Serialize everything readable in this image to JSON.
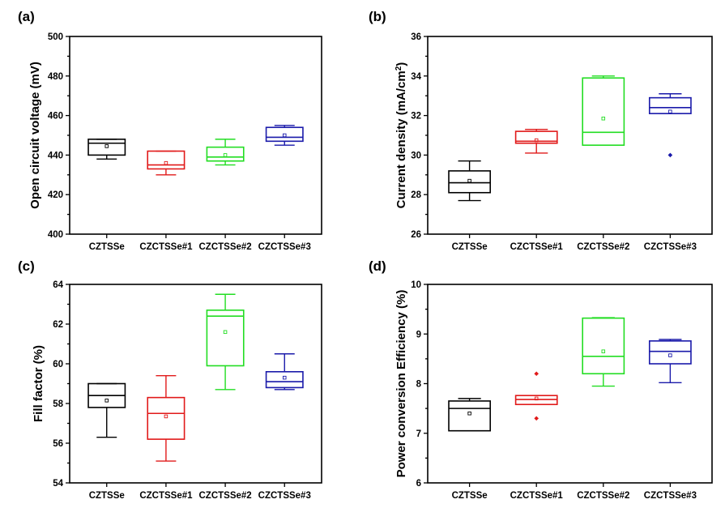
{
  "chart_data": [
    {
      "type": "box",
      "panel": "(a)",
      "ylabel": "Open circuit voltage (mV)",
      "ylim": [
        400,
        500
      ],
      "yticks": [
        400,
        420,
        440,
        460,
        480,
        500
      ],
      "categories": [
        "CZTSSe",
        "CZCTSSe#1",
        "CZCTSSe#2",
        "CZCTSSe#3"
      ],
      "colors": [
        "#000000",
        "#e11a1a",
        "#22dd22",
        "#1a1aaa"
      ],
      "boxes": [
        {
          "whisker_low": 438,
          "q1": 440,
          "median": 446,
          "q3": 448,
          "whisker_high": 448,
          "mean": 444.5,
          "outliers": []
        },
        {
          "whisker_low": 430,
          "q1": 433,
          "median": 435,
          "q3": 442,
          "whisker_high": 442,
          "mean": 436,
          "outliers": []
        },
        {
          "whisker_low": 435,
          "q1": 437,
          "median": 439,
          "q3": 444,
          "whisker_high": 448,
          "mean": 440,
          "outliers": []
        },
        {
          "whisker_low": 445,
          "q1": 447,
          "median": 449,
          "q3": 454,
          "whisker_high": 455,
          "mean": 450,
          "outliers": []
        }
      ]
    },
    {
      "type": "box",
      "panel": "(b)",
      "ylabel": "Current density (mA/cm",
      "ylabel_sup": "2",
      "ylabel_end": ")",
      "ylim": [
        26,
        36
      ],
      "yticks": [
        26,
        28,
        30,
        32,
        34,
        36
      ],
      "categories": [
        "CZTSSe",
        "CZCTSSe#1",
        "CZCTSSe#2",
        "CZCTSSe#3"
      ],
      "colors": [
        "#000000",
        "#e11a1a",
        "#22dd22",
        "#1a1aaa"
      ],
      "boxes": [
        {
          "whisker_low": 27.7,
          "q1": 28.1,
          "median": 28.6,
          "q3": 29.2,
          "whisker_high": 29.7,
          "mean": 28.7,
          "outliers": []
        },
        {
          "whisker_low": 30.1,
          "q1": 30.6,
          "median": 30.7,
          "q3": 31.2,
          "whisker_high": 31.3,
          "mean": 30.75,
          "outliers": []
        },
        {
          "whisker_low": 30.5,
          "q1": 30.5,
          "median": 31.15,
          "q3": 33.9,
          "whisker_high": 34.0,
          "mean": 31.85,
          "outliers": []
        },
        {
          "whisker_low": 32.1,
          "q1": 32.1,
          "median": 32.4,
          "q3": 32.9,
          "whisker_high": 33.1,
          "mean": 32.2,
          "outliers": [
            30.0
          ]
        }
      ]
    },
    {
      "type": "box",
      "panel": "(c)",
      "ylabel": "Fill factor (%)",
      "ylim": [
        54,
        64
      ],
      "yticks": [
        54,
        56,
        58,
        60,
        62,
        64
      ],
      "categories": [
        "CZTSSe",
        "CZCTSSe#1",
        "CZCTSSe#2",
        "CZCTSSe#3"
      ],
      "colors": [
        "#000000",
        "#e11a1a",
        "#22dd22",
        "#1a1aaa"
      ],
      "boxes": [
        {
          "whisker_low": 56.3,
          "q1": 57.8,
          "median": 58.4,
          "q3": 59.0,
          "whisker_high": 59.0,
          "mean": 58.15,
          "outliers": []
        },
        {
          "whisker_low": 55.1,
          "q1": 56.2,
          "median": 57.5,
          "q3": 58.3,
          "whisker_high": 59.4,
          "mean": 57.35,
          "outliers": []
        },
        {
          "whisker_low": 58.7,
          "q1": 59.9,
          "median": 62.4,
          "q3": 62.7,
          "whisker_high": 63.5,
          "mean": 61.6,
          "outliers": []
        },
        {
          "whisker_low": 58.7,
          "q1": 58.8,
          "median": 59.1,
          "q3": 59.6,
          "whisker_high": 60.5,
          "mean": 59.3,
          "outliers": []
        }
      ]
    },
    {
      "type": "box",
      "panel": "(d)",
      "ylabel": "Power conversion Efficiency (%)",
      "ylim": [
        6,
        10
      ],
      "yticks": [
        6,
        7,
        8,
        9,
        10
      ],
      "categories": [
        "CZTSSe",
        "CZCTSSe#1",
        "CZCTSSe#2",
        "CZCTSSe#3"
      ],
      "colors": [
        "#000000",
        "#e11a1a",
        "#22dd22",
        "#1a1aaa"
      ],
      "boxes": [
        {
          "whisker_low": 7.05,
          "q1": 7.05,
          "median": 7.5,
          "q3": 7.65,
          "whisker_high": 7.7,
          "mean": 7.4,
          "outliers": []
        },
        {
          "whisker_low": 7.58,
          "q1": 7.58,
          "median": 7.68,
          "q3": 7.76,
          "whisker_high": 7.76,
          "mean": 7.7,
          "outliers": [
            8.2,
            7.3
          ]
        },
        {
          "whisker_low": 7.95,
          "q1": 8.2,
          "median": 8.55,
          "q3": 9.32,
          "whisker_high": 9.33,
          "mean": 8.65,
          "outliers": []
        },
        {
          "whisker_low": 8.02,
          "q1": 8.4,
          "median": 8.65,
          "q3": 8.86,
          "whisker_high": 8.89,
          "mean": 8.57,
          "outliers": []
        }
      ]
    }
  ]
}
